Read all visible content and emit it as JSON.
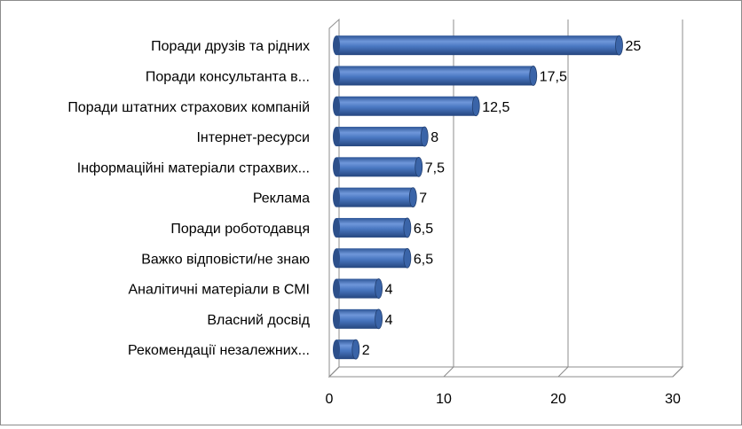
{
  "chart_data": {
    "type": "bar",
    "orientation": "horizontal",
    "style": "3d-cylinder",
    "categories": [
      "Поради друзів та рідних",
      "Поради консультанта в...",
      "Поради штатних страхових компаній",
      "Інтернет-ресурси",
      "Інформаційні матеріали страхвих...",
      "Реклама",
      "Поради роботодавця",
      "Важко відповісти/не знаю",
      "Аналітичні матеріали в СМІ",
      "Власний досвід",
      "Рекомендації незалежних..."
    ],
    "values": [
      25,
      17.5,
      12.5,
      8,
      7.5,
      7,
      6.5,
      6.5,
      4,
      4,
      2
    ],
    "value_labels": [
      "25",
      "17,5",
      "12,5",
      "8",
      "7,5",
      "7",
      "6,5",
      "6,5",
      "4",
      "4",
      "2"
    ],
    "xticks": [
      "0",
      "10",
      "20",
      "30"
    ],
    "xlim": [
      0,
      30
    ],
    "gridlines": "vertical",
    "legend": "none",
    "colors": {
      "bar": "#4a78c2",
      "bar_dark": "#2c4f8a",
      "bar_light": "#8fb0e4",
      "grid": "#8c8c8c"
    }
  }
}
